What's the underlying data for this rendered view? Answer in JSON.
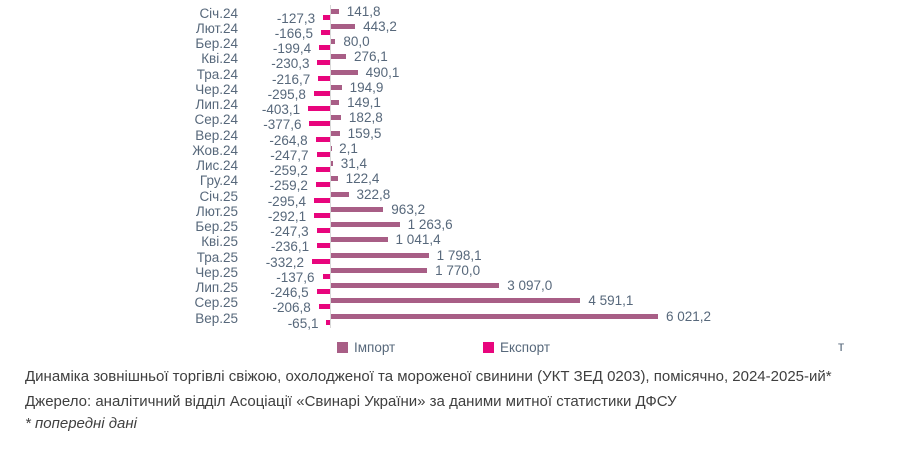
{
  "chart_data": {
    "type": "bar",
    "orientation": "horizontal",
    "unit_label": "т",
    "legend_position": "bottom",
    "grid": false,
    "zero_axis_line": true,
    "value_labels": "outside-end, one decimal, comma separator, space thousands",
    "categories": [
      "Січ.24",
      "Лют.24",
      "Бер.24",
      "Кві.24",
      "Тра.24",
      "Чер.24",
      "Лип.24",
      "Сер.24",
      "Вер.24",
      "Жов.24",
      "Лис.24",
      "Гру.24",
      "Січ.25",
      "Лют.25",
      "Бер.25",
      "Кві.25",
      "Тра.25",
      "Чер.25",
      "Лип.25",
      "Сер.25",
      "Вер.25"
    ],
    "series": [
      {
        "name": "Імпорт",
        "color": "#a85e86",
        "values": [
          141.8,
          443.2,
          80.0,
          276.1,
          490.1,
          194.9,
          149.1,
          182.8,
          159.5,
          2.1,
          31.4,
          122.4,
          322.8,
          963.2,
          1263.6,
          1041.4,
          1798.1,
          1770.0,
          3097.0,
          4591.1,
          6021.2
        ]
      },
      {
        "name": "Експорт",
        "color": "#e8057d",
        "values": [
          -127.3,
          -166.5,
          -199.4,
          -230.3,
          -216.7,
          -295.8,
          -403.1,
          -377.6,
          -264.8,
          -247.7,
          -259.2,
          -259.2,
          -295.4,
          -292.1,
          -247.3,
          -236.1,
          -332.2,
          -137.6,
          -246.5,
          -206.8,
          -65.1
        ]
      }
    ],
    "xlim": [
      -500,
      6500
    ]
  },
  "caption": {
    "title": "Динаміка зовнішньої торгівлі свіжою, охолодженої та мороженої свинини (УКТ ЗЕД 0203), помісячно, 2024-2025-ий*",
    "source": "Джерело: аналітичний відділ Асоціації «Свинарі України» за даними митної статистики ДФСУ",
    "footnote": "* попередні дані"
  }
}
